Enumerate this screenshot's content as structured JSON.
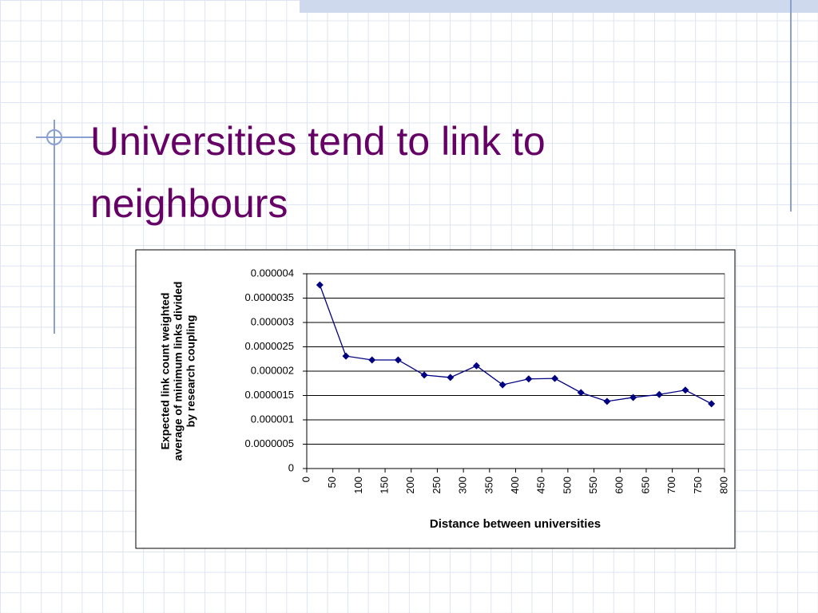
{
  "title": "Universities tend to link to neighbours",
  "chart_data": {
    "type": "line",
    "ylabel": [
      "Expected link count weighted",
      "average of minimum links divided",
      "by research coupling"
    ],
    "xlabel": "Distance between universities",
    "x": [
      25,
      75,
      125,
      175,
      225,
      275,
      325,
      375,
      425,
      475,
      525,
      575,
      625,
      675,
      725,
      775
    ],
    "series": [
      {
        "color": "#000080",
        "values": [
          3.77e-06,
          2.31e-06,
          2.23e-06,
          2.23e-06,
          1.92e-06,
          1.87e-06,
          2.11e-06,
          1.72e-06,
          1.84e-06,
          1.85e-06,
          1.56e-06,
          1.38e-06,
          1.46e-06,
          1.52e-06,
          1.61e-06,
          1.33e-06
        ]
      }
    ],
    "xlim": [
      0,
      800
    ],
    "xticks": [
      0,
      50,
      100,
      150,
      200,
      250,
      300,
      350,
      400,
      450,
      500,
      550,
      600,
      650,
      700,
      750,
      800
    ],
    "ylim": [
      0,
      4e-06
    ],
    "yticks": [
      0,
      {
        "value": 5e-07,
        "label": "0.0000005"
      },
      {
        "value": 1e-06,
        "label": "0.000001"
      },
      {
        "value": 1.5e-06,
        "label": "0.0000015"
      },
      {
        "value": 2e-06,
        "label": "0.000002"
      },
      {
        "value": 2.5e-06,
        "label": "0.0000025"
      },
      {
        "value": 3e-06,
        "label": "0.000003"
      },
      {
        "value": 3.5e-06,
        "label": "0.0000035"
      },
      {
        "value": 4e-06,
        "label": "0.000004"
      }
    ],
    "grid": true
  }
}
